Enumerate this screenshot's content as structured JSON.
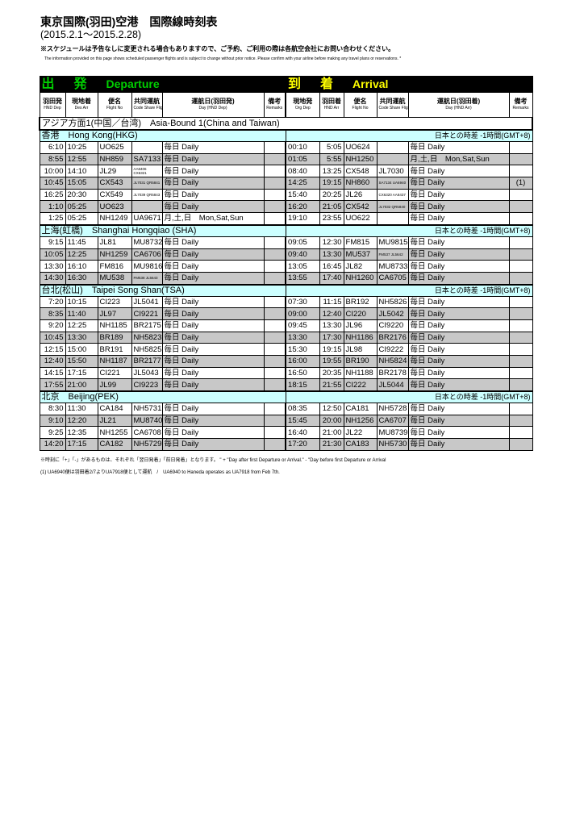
{
  "title": "東京国際(羽田)空港　国際線時刻表",
  "period": "(2015.2.1～2015.2.28)",
  "notice_jp": "※スケジュールは予告なしに変更される場合もありますので、ご予約、ご利用の際は各航空会社にお問い合わせください。",
  "notice_en": "The information provided on this page shows scheduled passenger flights and is subject to change without prior notice. Please confirm with your airline before making any travel plans or reservations. *",
  "colors": {
    "departure": "#00d000",
    "arrival": "#ffff00",
    "section_bg": "#ccffff",
    "alt_row": "#c8c8c8"
  },
  "departure": {
    "kanji1": "出",
    "kanji2": "発",
    "label": "Departure",
    "columns": [
      {
        "jp": "羽田発",
        "en": "HND Dep"
      },
      {
        "jp": "現地着",
        "en": "Des Arr"
      },
      {
        "jp": "便名",
        "en": "Flight No"
      },
      {
        "jp": "共同運航",
        "en": "Code Share Flight No"
      },
      {
        "jp": "運航日(羽田発)",
        "en": "Day (HND Dep)"
      },
      {
        "jp": "備考",
        "en": "Remarks"
      }
    ]
  },
  "arrival": {
    "kanji1": "到",
    "kanji2": "着",
    "label": "Arrival",
    "columns": [
      {
        "jp": "現地発",
        "en": "Org Dep"
      },
      {
        "jp": "羽田着",
        "en": "HND Arr"
      },
      {
        "jp": "便名",
        "en": "Flight No"
      },
      {
        "jp": "共同運航",
        "en": "Code Share Flight No"
      },
      {
        "jp": "運航日(羽田着)",
        "en": "Day (HND Arr)"
      },
      {
        "jp": "備考",
        "en": "Remarks"
      }
    ]
  },
  "region": "アジア方面1(中国／台湾)　Asia-Bound 1(China and Taiwan)",
  "sections": [
    {
      "name": "香港　Hong Kong(HKG)",
      "tz": "日本との時差 -1時間(GMT+8)",
      "rows": [
        [
          "6:10",
          "10:25",
          "UO625",
          "",
          "毎日 Daily",
          "",
          "00:10",
          "5:05",
          "UO624",
          "",
          "毎日 Daily",
          ""
        ],
        [
          "8:55",
          "12:55",
          "NH859",
          "SA7133",
          "毎日 Daily",
          "",
          "01:05",
          "5:55",
          "NH1250",
          "",
          "月,土,日　Mon,Sat,Sun",
          ""
        ],
        [
          "10:00",
          "14:10",
          "JL29",
          "AA8406 CX6321",
          "毎日 Daily",
          "",
          "08:40",
          "13:25",
          "CX548",
          "JL7030",
          "毎日 Daily",
          ""
        ],
        [
          "10:45",
          "15:05",
          "CX543",
          "JL7031 QR5841",
          "毎日 Daily",
          "",
          "14:25",
          "19:15",
          "NH860",
          "SA7134 UA6940",
          "毎日 Daily",
          "(1)"
        ],
        [
          "16:25",
          "20:30",
          "CX549",
          "JL7039 QR5843",
          "毎日 Daily",
          "",
          "15:40",
          "20:25",
          "JL26",
          "CX6320 AA8437",
          "毎日 Daily",
          ""
        ],
        [
          "1:10",
          "05:25",
          "UO623",
          "",
          "毎日 Daily",
          "",
          "16:20",
          "21:05",
          "CX542",
          "JL7032 QR5840",
          "毎日 Daily",
          ""
        ],
        [
          "1:25",
          "05:25",
          "NH1249",
          "UA9671",
          "月,土,日　Mon,Sat,Sun",
          "",
          "19:10",
          "23:55",
          "UO622",
          "",
          "毎日 Daily",
          ""
        ]
      ]
    },
    {
      "name": "上海(虹橋)　Shanghai Hongqiao (SHA)",
      "tz": "日本との時差 -1時間(GMT+8)",
      "rows": [
        [
          "9:15",
          "11:45",
          "JL81",
          "MU8732",
          "毎日 Daily",
          "",
          "09:05",
          "12:30",
          "FM815",
          "MU9815",
          "毎日 Daily",
          ""
        ],
        [
          "10:05",
          "12:25",
          "NH1259",
          "CA6706",
          "毎日 Daily",
          "",
          "09:40",
          "13:30",
          "MU537",
          "FM537 JL5642",
          "毎日 Daily",
          ""
        ],
        [
          "13:30",
          "16:10",
          "FM816",
          "MU9816",
          "毎日 Daily",
          "",
          "13:05",
          "16:45",
          "JL82",
          "MU8733",
          "毎日 Daily",
          ""
        ],
        [
          "14:30",
          "16:30",
          "MU538",
          "FM538 JL5643",
          "毎日 Daily",
          "",
          "13:55",
          "17:40",
          "NH1260",
          "CA6705",
          "毎日 Daily",
          ""
        ]
      ]
    },
    {
      "name": "台北(松山)　Taipei Song Shan(TSA)",
      "tz": "日本との時差 -1時間(GMT+8)",
      "rows": [
        [
          "7:20",
          "10:15",
          "CI223",
          "JL5041",
          "毎日 Daily",
          "",
          "07:30",
          "11:15",
          "BR192",
          "NH5826",
          "毎日 Daily",
          ""
        ],
        [
          "8:35",
          "11:40",
          "JL97",
          "CI9221",
          "毎日 Daily",
          "",
          "09:00",
          "12:40",
          "CI220",
          "JL5042",
          "毎日 Daily",
          ""
        ],
        [
          "9:20",
          "12:25",
          "NH1185",
          "BR2175",
          "毎日 Daily",
          "",
          "09:45",
          "13:30",
          "JL96",
          "CI9220",
          "毎日 Daily",
          ""
        ],
        [
          "10:45",
          "13:30",
          "BR189",
          "NH5823",
          "毎日 Daily",
          "",
          "13:30",
          "17:30",
          "NH1186",
          "BR2176",
          "毎日 Daily",
          ""
        ],
        [
          "12:15",
          "15:00",
          "BR191",
          "NH5825",
          "毎日 Daily",
          "",
          "15:30",
          "19:15",
          "JL98",
          "CI9222",
          "毎日 Daily",
          ""
        ],
        [
          "12:40",
          "15:50",
          "NH1187",
          "BR2177",
          "毎日 Daily",
          "",
          "16:00",
          "19:55",
          "BR190",
          "NH5824",
          "毎日 Daily",
          ""
        ],
        [
          "14:15",
          "17:15",
          "CI221",
          "JL5043",
          "毎日 Daily",
          "",
          "16:50",
          "20:35",
          "NH1188",
          "BR2178",
          "毎日 Daily",
          ""
        ],
        [
          "17:55",
          "21:00",
          "JL99",
          "CI9223",
          "毎日 Daily",
          "",
          "18:15",
          "21:55",
          "CI222",
          "JL5044",
          "毎日 Daily",
          ""
        ]
      ]
    },
    {
      "name": "北京　Beijing(PEK)",
      "tz": "日本との時差 -1時間(GMT+8)",
      "rows": [
        [
          "8:30",
          "11:30",
          "CA184",
          "NH5731",
          "毎日 Daily",
          "",
          "08:35",
          "12:50",
          "CA181",
          "NH5728",
          "毎日 Daily",
          ""
        ],
        [
          "9:10",
          "12:20",
          "JL21",
          "MU8740",
          "毎日 Daily",
          "",
          "15:45",
          "20:00",
          "NH1256",
          "CA6707",
          "毎日 Daily",
          ""
        ],
        [
          "9:25",
          "12:35",
          "NH1255",
          "CA6708",
          "毎日 Daily",
          "",
          "16:40",
          "21:00",
          "JL22",
          "MU8739",
          "毎日 Daily",
          ""
        ],
        [
          "14:20",
          "17:15",
          "CA182",
          "NH5729",
          "毎日 Daily",
          "",
          "17:20",
          "21:30",
          "CA183",
          "NH5730",
          "毎日 Daily",
          ""
        ]
      ]
    }
  ],
  "footnote_1": "※時刻に「+」「-」があるものは、それぞれ「翌日発着」「前日発着」となります。 \" + \"Day after first Departure or Arrival.\" - \"Day before first Departure or Arrival",
  "footnote_2": "(1) UA6940便は羽田着2/7よりUA7918便として運航　/　UA6940 to Haneda operates as UA7918 from Feb 7th."
}
